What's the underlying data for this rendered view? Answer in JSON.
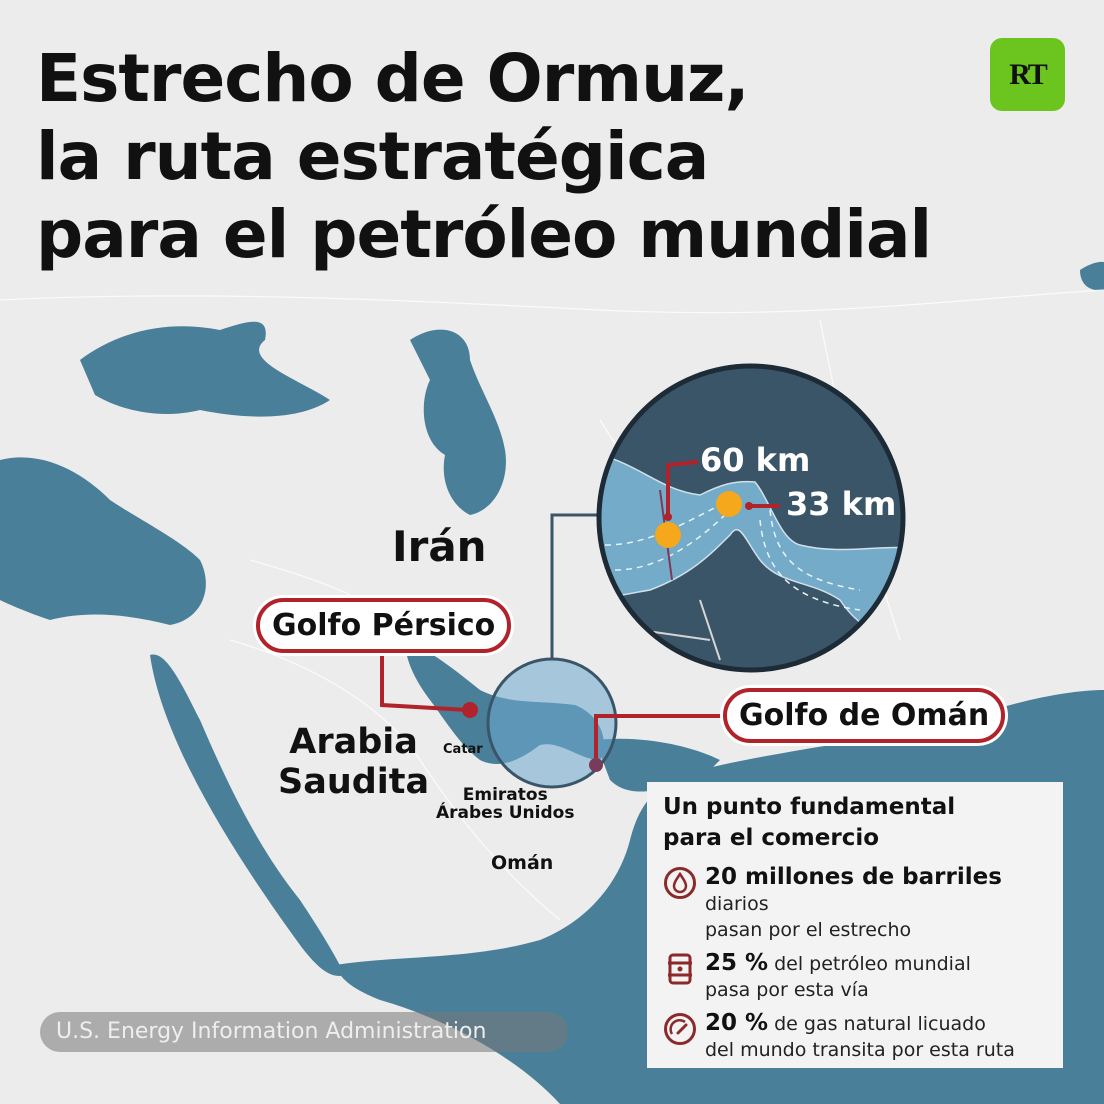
{
  "title": {
    "lines": [
      "Estrecho de Ormuz,",
      "la ruta estratégica",
      "para el petróleo mundial"
    ]
  },
  "logo": {
    "text": "RT",
    "color": "#6cc51e"
  },
  "colors": {
    "sea": "#4a7f9a",
    "land": "#ececec",
    "accent_red": "#b0232a",
    "marker_orange": "#f5a81c",
    "inset_land": "#3b5568",
    "inset_water": "#74abc8"
  },
  "map": {
    "countries": {
      "iran": "Irán",
      "saudi_arabia": [
        "Arabia",
        "Saudita"
      ],
      "qatar": "Catar",
      "uae": [
        "Emiratos",
        "Árabes Unidos"
      ],
      "oman": "Omán"
    },
    "callouts": {
      "persian_gulf": "Golfo Pérsico",
      "gulf_of_oman": "Golfo de Omán"
    },
    "inset": {
      "width_west": "60 km",
      "width_strait": "33 km"
    }
  },
  "info": {
    "heading": [
      "Un punto fundamental",
      "para el comercio"
    ],
    "facts": [
      {
        "icon": "oil-drop-icon",
        "bold": "20 millones de barriles",
        "text_line1": " diarios",
        "text_line2": "pasan por el estrecho"
      },
      {
        "icon": "oil-barrel-icon",
        "bold": "25 %",
        "text_line1": " del petróleo mundial",
        "text_line2": "pasa por esta vía"
      },
      {
        "icon": "gauge-icon",
        "bold": "20 %",
        "text_line1": " de gas natural licuado",
        "text_line2": "del mundo transita por esta ruta"
      }
    ]
  },
  "source": "U.S. Energy Information Administration"
}
